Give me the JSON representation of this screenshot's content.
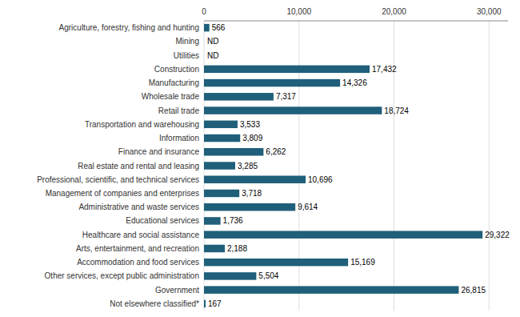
{
  "chart_data": {
    "type": "bar",
    "orientation": "horizontal",
    "categories": [
      "Agriculture, forestry, fishing and hunting",
      "Mining",
      "Utilities",
      "Construction",
      "Manufacturing",
      "Wholesale trade",
      "Retail trade",
      "Transportation and warehousing",
      "Information",
      "Finance and insurance",
      "Real estate and rental and leasing",
      "Professional, scientific, and technical services",
      "Management of companies and enterprises",
      "Administrative and waste services",
      "Educational services",
      "Healthcare and social assistance",
      "Arts, entertainment, and recreation",
      "Accommodation and food services",
      "Other services, except public administration",
      "Government",
      "Not elsewhere classified*"
    ],
    "values": [
      566,
      null,
      null,
      17432,
      14326,
      7317,
      18724,
      3533,
      3809,
      6262,
      3285,
      10696,
      3718,
      9614,
      1736,
      29322,
      2188,
      15169,
      5504,
      26815,
      167
    ],
    "value_labels": [
      "566",
      "ND",
      "ND",
      "17,432",
      "14,326",
      "7,317",
      "18,724",
      "3,533",
      "3,809",
      "6,262",
      "3,285",
      "10,696",
      "3,718",
      "9,614",
      "1,736",
      "29,322",
      "2,188",
      "15,169",
      "5,504",
      "26,815",
      "167"
    ],
    "data_labels": true,
    "color": "#1f5f7a",
    "xlim": [
      0,
      32000
    ],
    "xticks": [
      0,
      {
        "value": 10000,
        "label": "10,000"
      },
      {
        "value": 20000,
        "label": "20,000"
      },
      {
        "value": 30000,
        "label": "30,000"
      }
    ],
    "grid": true
  }
}
